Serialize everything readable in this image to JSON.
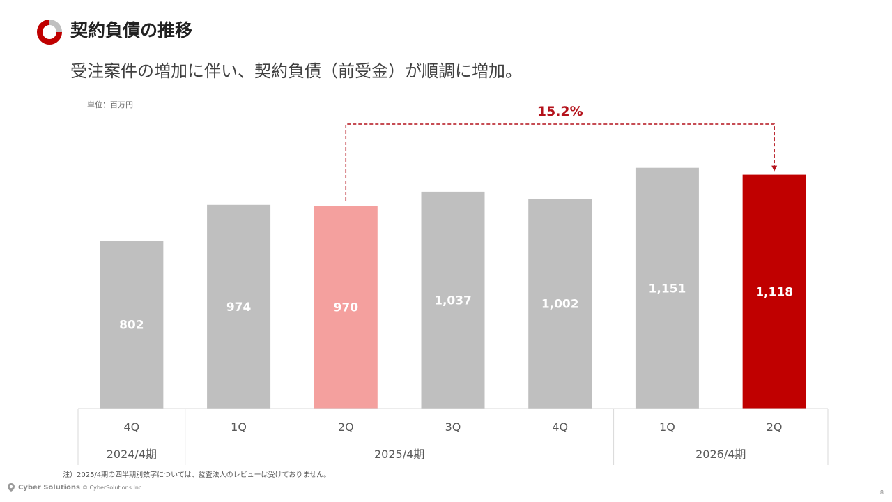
{
  "header": {
    "title": "契約負債の推移",
    "subtitle": "受注案件の増加に伴い、契約負債（前受金）が順調に増加。",
    "unit_label": "単位：百万円"
  },
  "colors": {
    "brand_red": "#c00000",
    "bar_gray": "#bfbfbf",
    "bar_highlight_light": "#f4a09e",
    "bar_highlight_dark": "#c00000",
    "growth_text": "#b4121b"
  },
  "chart_data": {
    "type": "bar",
    "title": "契約負債の推移",
    "unit": "単位：百万円",
    "categories": [
      "4Q",
      "1Q",
      "2Q",
      "3Q",
      "4Q",
      "1Q",
      "2Q"
    ],
    "groups": [
      {
        "label": "2024/4期",
        "from": 0,
        "to": 0
      },
      {
        "label": "2025/4期",
        "from": 1,
        "to": 4
      },
      {
        "label": "2026/4期",
        "from": 5,
        "to": 6
      }
    ],
    "series": [
      {
        "name": "契約負債",
        "values": [
          802,
          974,
          970,
          1037,
          1002,
          1151,
          1118
        ],
        "labels": [
          "802",
          "974",
          "970",
          "1,037",
          "1,002",
          "1,151",
          "1,118"
        ]
      }
    ],
    "highlight_light_index": 2,
    "highlight_dark_index": 6,
    "ylim": [
      0,
      1400
    ],
    "grid": false,
    "annotation": {
      "text": "15.2%",
      "from_index": 2,
      "to_index": 6
    }
  },
  "footer": {
    "note": "注）2025/4期の四半期別数字については、監査法人のレビューは受けておりません。",
    "brand": "Cyber Solutions",
    "copyright": "© CyberSolutions Inc.",
    "page_number": "8"
  }
}
